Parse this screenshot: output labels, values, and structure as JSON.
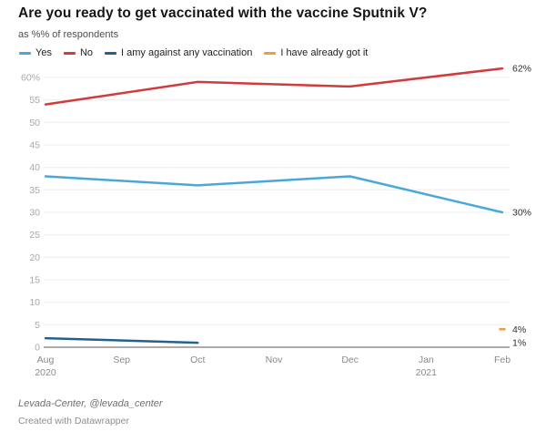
{
  "header": {
    "title": "Are you ready to get vaccinated with the vaccine Sputnik V?",
    "subtitle": "as %% of respondents"
  },
  "legend": [
    {
      "label": "Yes",
      "color": "#4aa8d8"
    },
    {
      "label": "No",
      "color": "#d23b3b"
    },
    {
      "label": "I amy against any vaccination",
      "color": "#25618a"
    },
    {
      "label": "I have already got it",
      "color": "#f09c3d"
    }
  ],
  "chart_data": {
    "type": "line",
    "x": [
      "Aug 2020",
      "Oct 2020",
      "Dec 2020",
      "Feb 2021"
    ],
    "x_month_index": [
      0,
      2,
      4,
      6
    ],
    "series": [
      {
        "name": "Yes",
        "color": "#4aa8d8",
        "values": [
          38,
          36,
          38,
          30
        ],
        "end_label": "30%",
        "label_value": 30
      },
      {
        "name": "No",
        "color": "#d23b3b",
        "values": [
          54,
          59,
          58,
          62
        ],
        "end_label": "62%",
        "label_value": 62
      },
      {
        "name": "I amy against any vaccination",
        "color": "#25618a",
        "values": [
          2,
          1,
          null,
          null
        ],
        "end_label": "1%",
        "label_value": 1
      },
      {
        "name": "I have already got it",
        "color": "#f09c3d",
        "values": [
          null,
          null,
          null,
          4
        ],
        "end_label": "4%",
        "label_value": 4
      }
    ],
    "ylim": [
      0,
      62
    ],
    "yticks": [
      0,
      5,
      10,
      15,
      20,
      25,
      30,
      35,
      40,
      45,
      50,
      55,
      60
    ],
    "ytick_labels": [
      "0",
      "5",
      "10",
      "15",
      "20",
      "25",
      "30",
      "35",
      "40",
      "45",
      "50",
      "55",
      "60%"
    ],
    "xticks": [
      {
        "label": "Aug",
        "sub": "2020"
      },
      {
        "label": "Sep"
      },
      {
        "label": "Oct"
      },
      {
        "label": "Nov"
      },
      {
        "label": "Dec"
      },
      {
        "label": "Jan",
        "sub": "2021"
      },
      {
        "label": "Feb"
      }
    ],
    "grid": true,
    "legend_position": "top",
    "colors": {
      "axis_baseline": "#8f8f8f",
      "gridline": "#ececec"
    }
  },
  "footer": {
    "source": "Levada-Center, @levada_center",
    "credit": "Created with Datawrapper"
  }
}
